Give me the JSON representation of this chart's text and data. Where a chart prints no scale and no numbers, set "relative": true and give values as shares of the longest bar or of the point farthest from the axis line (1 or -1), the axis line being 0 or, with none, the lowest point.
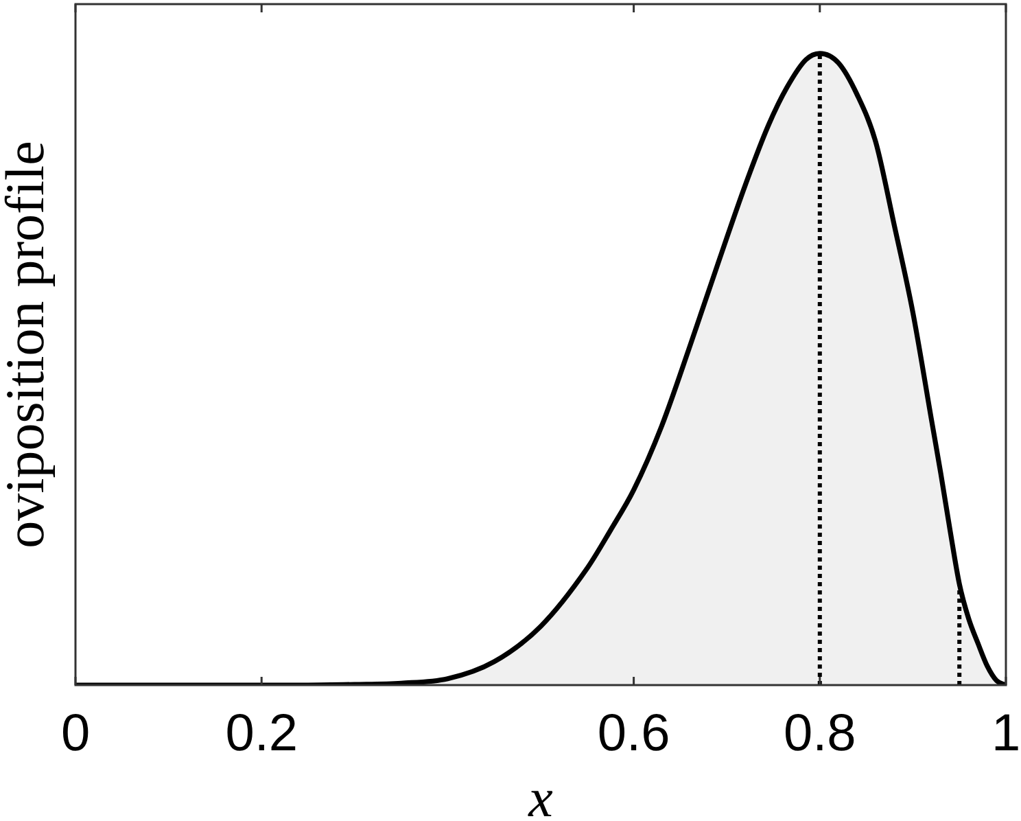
{
  "chart_data": {
    "type": "area",
    "xlabel": "x",
    "ylabel": "oviposition profile",
    "relative": true,
    "x": [
      0,
      0.1,
      0.2,
      0.25,
      0.3,
      0.35,
      0.4,
      0.45,
      0.5,
      0.55,
      0.575,
      0.6,
      0.63,
      0.66,
      0.69,
      0.72,
      0.745,
      0.765,
      0.785,
      0.8,
      0.82,
      0.84,
      0.86,
      0.88,
      0.9,
      0.92,
      0.93,
      0.94,
      0.95,
      0.96,
      0.97,
      0.98,
      0.99,
      1
    ],
    "series": [
      {
        "color": "#000000",
        "values": [
          0,
          0,
          0,
          0,
          0.001,
          0.003,
          0.01,
          0.037,
          0.093,
          0.185,
          0.245,
          0.309,
          0.41,
          0.535,
          0.665,
          0.792,
          0.887,
          0.947,
          0.99,
          1,
          0.985,
          0.935,
          0.86,
          0.728,
          0.59,
          0.42,
          0.335,
          0.245,
          0.16,
          0.105,
          0.066,
          0.03,
          0.007,
          0
        ]
      }
    ],
    "xlim": [
      0,
      1
    ],
    "xticks": [
      0,
      0.2,
      0.6,
      0.8,
      1
    ],
    "ref_lines": [
      {
        "axis": "x",
        "value": 0.8,
        "color": "#000000",
        "line_style": "dotted"
      },
      {
        "axis": "x",
        "value": 0.95,
        "color": "#000000",
        "line_style": "dotted"
      }
    ],
    "grid": false,
    "legend": false,
    "marker": "none",
    "line_style": "solid"
  }
}
